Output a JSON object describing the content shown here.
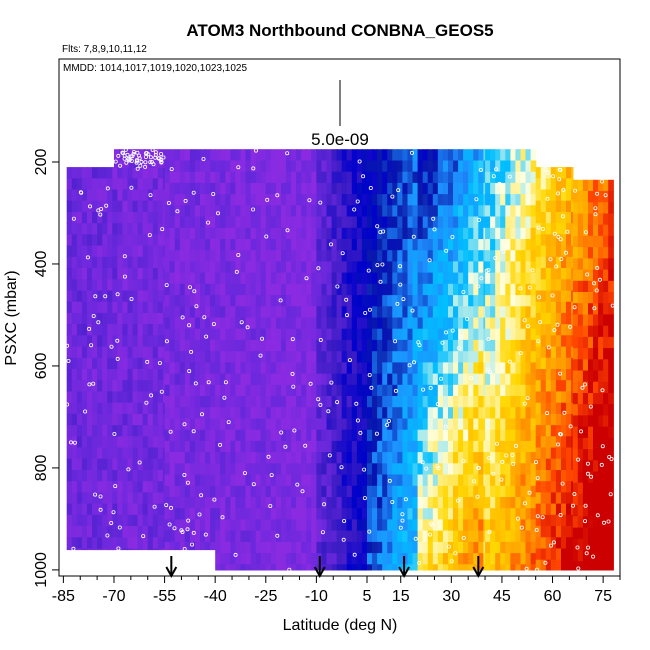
{
  "chart_data": {
    "type": "heatmap",
    "title": "ATOM3 Northbound CONBNA_GEOS5",
    "subtitle_flights": "Flts: 7,8,9,10,11,12",
    "subtitle_dates": "MMDD: 1014,1017,1019,1020,1023,1025",
    "scale_label": "5.0e-09",
    "xlabel": "Latitude (deg N)",
    "ylabel": "PSXC (mbar)",
    "x_ticks": [
      "-85",
      "-70",
      "-55",
      "-40",
      "-25",
      "-10",
      "5",
      "15",
      "30",
      "45",
      "60",
      "75"
    ],
    "y_ticks": [
      "200",
      "400",
      "600",
      "800",
      "1000"
    ],
    "xlim": [
      -86,
      80
    ],
    "ylim": [
      1010,
      0
    ],
    "grid": false,
    "markers": {
      "type": "downward-arrows",
      "latitudes": [
        -53,
        -9,
        16,
        38
      ]
    },
    "colorscale": [
      "#8a2be2",
      "#6a28dc",
      "#3a1bc4",
      "#0000cd",
      "#0a1aaa",
      "#1e90ff",
      "#00bfff",
      "#ffffe0",
      "#ffd700",
      "#ffa500",
      "#ff4500",
      "#cc0000"
    ],
    "columns": [
      {
        "lat0": -84,
        "lat1": -55,
        "p0": 210,
        "p1": 960
      },
      {
        "lat0": -70,
        "lat1": -55,
        "p0": 175,
        "p1": 210
      },
      {
        "lat0": -55,
        "lat1": -40,
        "p0": 175,
        "p1": 960
      },
      {
        "lat0": -40,
        "lat1": -10,
        "p0": 175,
        "p1": 1000
      },
      {
        "lat0": -10,
        "lat1": 5,
        "p0": 175,
        "p1": 1000
      },
      {
        "lat0": 5,
        "lat1": 20,
        "p0": 175,
        "p1": 1000
      },
      {
        "lat0": 20,
        "lat1": 40,
        "p0": 175,
        "p1": 1000
      },
      {
        "lat0": 40,
        "lat1": 55,
        "p0": 175,
        "p1": 1000
      },
      {
        "lat0": 55,
        "lat1": 66,
        "p0": 210,
        "p1": 1000
      },
      {
        "lat0": 66,
        "lat1": 78,
        "p0": 235,
        "p1": 1000
      }
    ]
  }
}
